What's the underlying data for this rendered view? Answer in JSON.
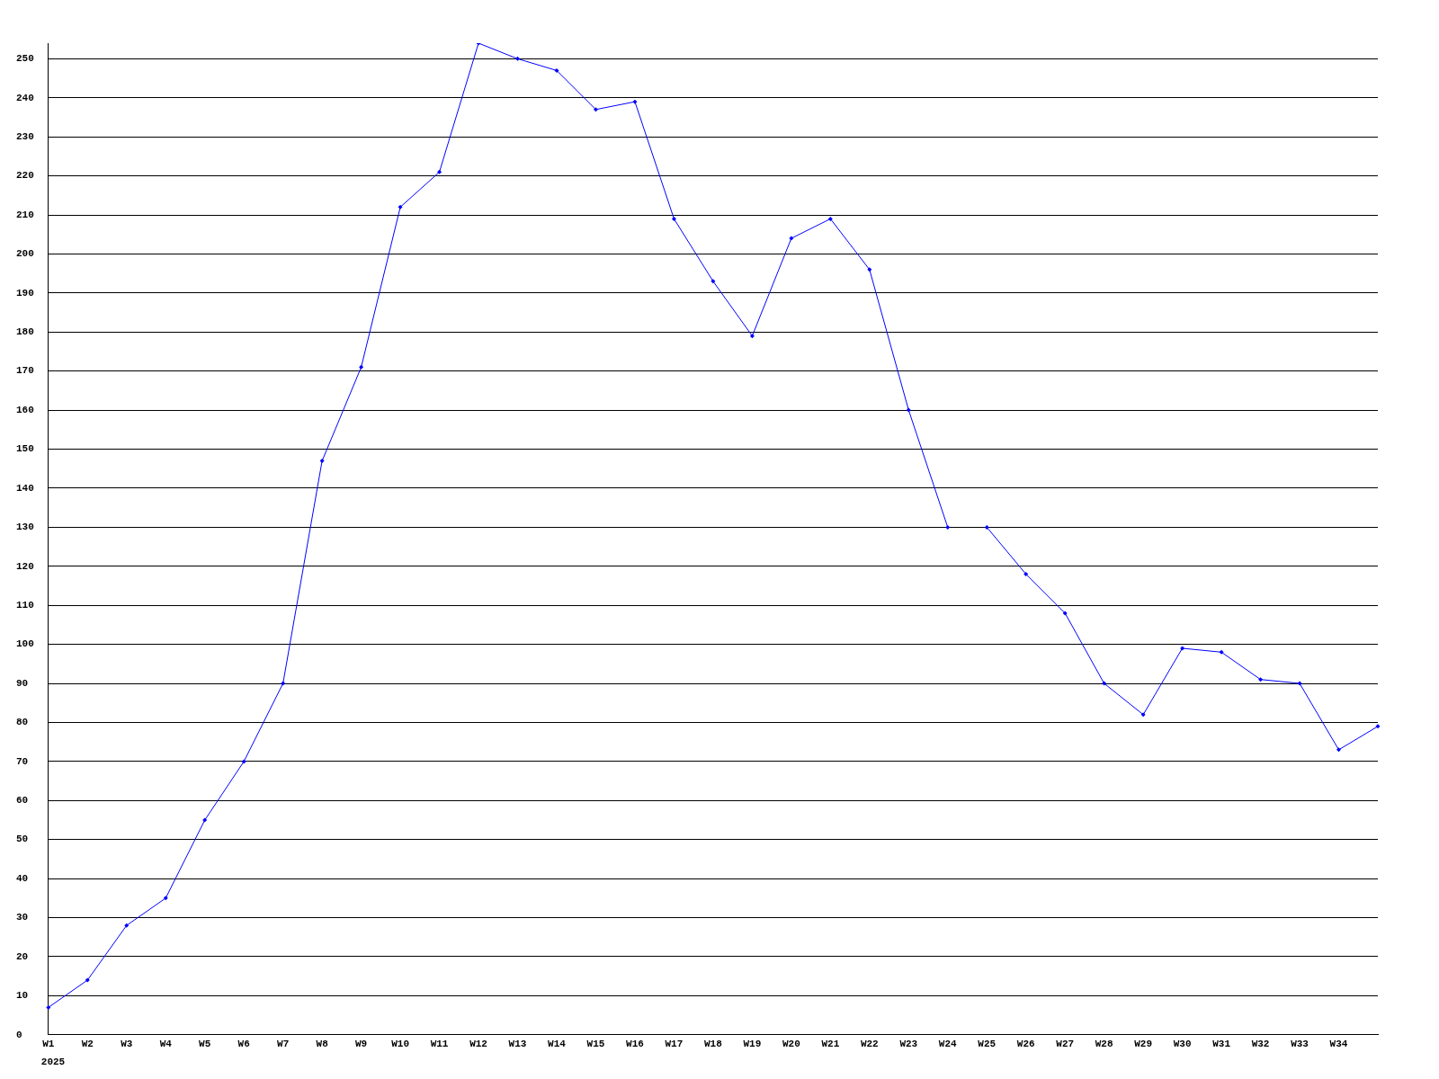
{
  "chart_data": {
    "type": "line",
    "categories": [
      "W1",
      "W2",
      "W3",
      "W4",
      "W5",
      "W6",
      "W7",
      "W8",
      "W9",
      "W10",
      "W11",
      "W12",
      "W13",
      "W14",
      "W15",
      "W16",
      "W17",
      "W18",
      "W19",
      "W20",
      "W21",
      "W22",
      "W23",
      "W24",
      "W25",
      "W26",
      "W27",
      "W28",
      "W29",
      "W30",
      "W31",
      "W32",
      "W33",
      "W34",
      null
    ],
    "series": [
      {
        "color": "#0000ff",
        "values": [
          7,
          14,
          28,
          35,
          55,
          70,
          90,
          147,
          171,
          212,
          221,
          254,
          250,
          247,
          237,
          239,
          209,
          193,
          179,
          204,
          209,
          196,
          160,
          130,
          null,
          null,
          null,
          null,
          null,
          null,
          null,
          null,
          null,
          null,
          null
        ]
      },
      {
        "color": "#0000ff",
        "values": [
          null,
          null,
          null,
          null,
          null,
          null,
          null,
          null,
          null,
          null,
          null,
          null,
          null,
          null,
          null,
          null,
          null,
          null,
          null,
          null,
          null,
          null,
          null,
          null,
          130,
          118,
          108,
          90,
          82,
          99,
          98,
          91,
          90,
          73,
          79
        ]
      }
    ],
    "ylim": [
      0,
      254
    ],
    "yticks": [
      0,
      10,
      20,
      30,
      40,
      50,
      60,
      70,
      80,
      90,
      100,
      110,
      120,
      130,
      140,
      150,
      160,
      170,
      180,
      190,
      200,
      210,
      220,
      230,
      240,
      250
    ],
    "grid": "y",
    "marker": "diamond",
    "line_style": "solid",
    "annotations": [
      "2025"
    ]
  }
}
